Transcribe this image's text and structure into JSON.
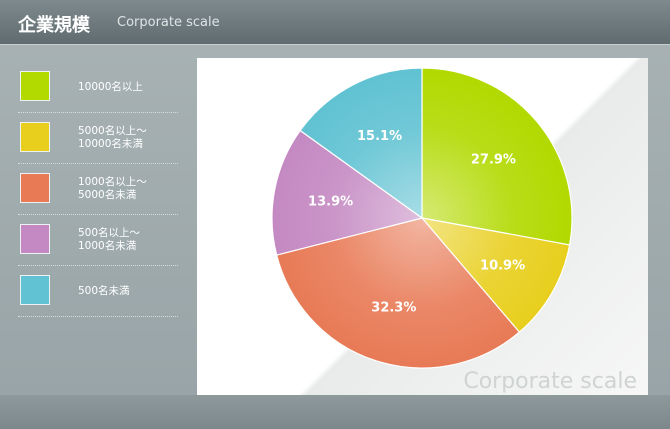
{
  "chart_data": {
    "type": "pie",
    "title": "企業規模",
    "subtitle": "Corporate scale",
    "watermark": "Corporate scale",
    "categories": [
      "10000名以上",
      "5000名以上～\n10000名未満",
      "1000名以上～\n5000名未満",
      "500名以上～\n1000名未満",
      "500名未満"
    ],
    "values": [
      27.9,
      10.9,
      32.3,
      13.9,
      15.1
    ],
    "value_labels": [
      "27.9%",
      "10.9%",
      "32.3%",
      "13.9%",
      "15.1%"
    ],
    "colors": [
      "#b2d900",
      "#e8cf1e",
      "#e87a56",
      "#c489c2",
      "#60c2d2"
    ]
  }
}
